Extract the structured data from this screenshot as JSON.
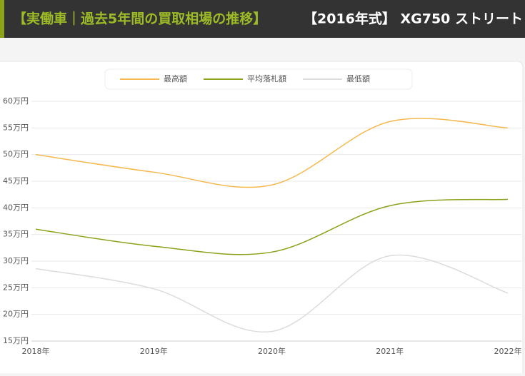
{
  "header": {
    "title_main": "【実働車｜過去5年間の買取相場の推移】",
    "title_sub": "【2016年式】 XG750 ストリート"
  },
  "chart_data": {
    "type": "line",
    "smooth": true,
    "categories": [
      "2018年",
      "2019年",
      "2020年",
      "2021年",
      "2022年"
    ],
    "series": [
      {
        "name": "最高額",
        "color": "#f5b94f",
        "values": [
          50,
          46.7,
          44.3,
          56.2,
          55
        ]
      },
      {
        "name": "平均落札額",
        "color": "#8aa31a",
        "values": [
          36,
          32.8,
          31.7,
          40.4,
          41.6
        ]
      },
      {
        "name": "最低額",
        "color": "#dcdcdc",
        "values": [
          28.6,
          24.8,
          16.8,
          31,
          24
        ]
      }
    ],
    "ylim": [
      15,
      60
    ],
    "yticks": [
      {
        "value": 15,
        "label": "15万円"
      },
      {
        "value": 20,
        "label": "20万円"
      },
      {
        "value": 25,
        "label": "25万円"
      },
      {
        "value": 30,
        "label": "30万円"
      },
      {
        "value": 35,
        "label": "35万円"
      },
      {
        "value": 40,
        "label": "40万円"
      },
      {
        "value": 45,
        "label": "45万円"
      },
      {
        "value": 50,
        "label": "50万円"
      },
      {
        "value": 55,
        "label": "55万円"
      },
      {
        "value": 60,
        "label": "60万円"
      }
    ],
    "grid": true,
    "legend": "top"
  }
}
